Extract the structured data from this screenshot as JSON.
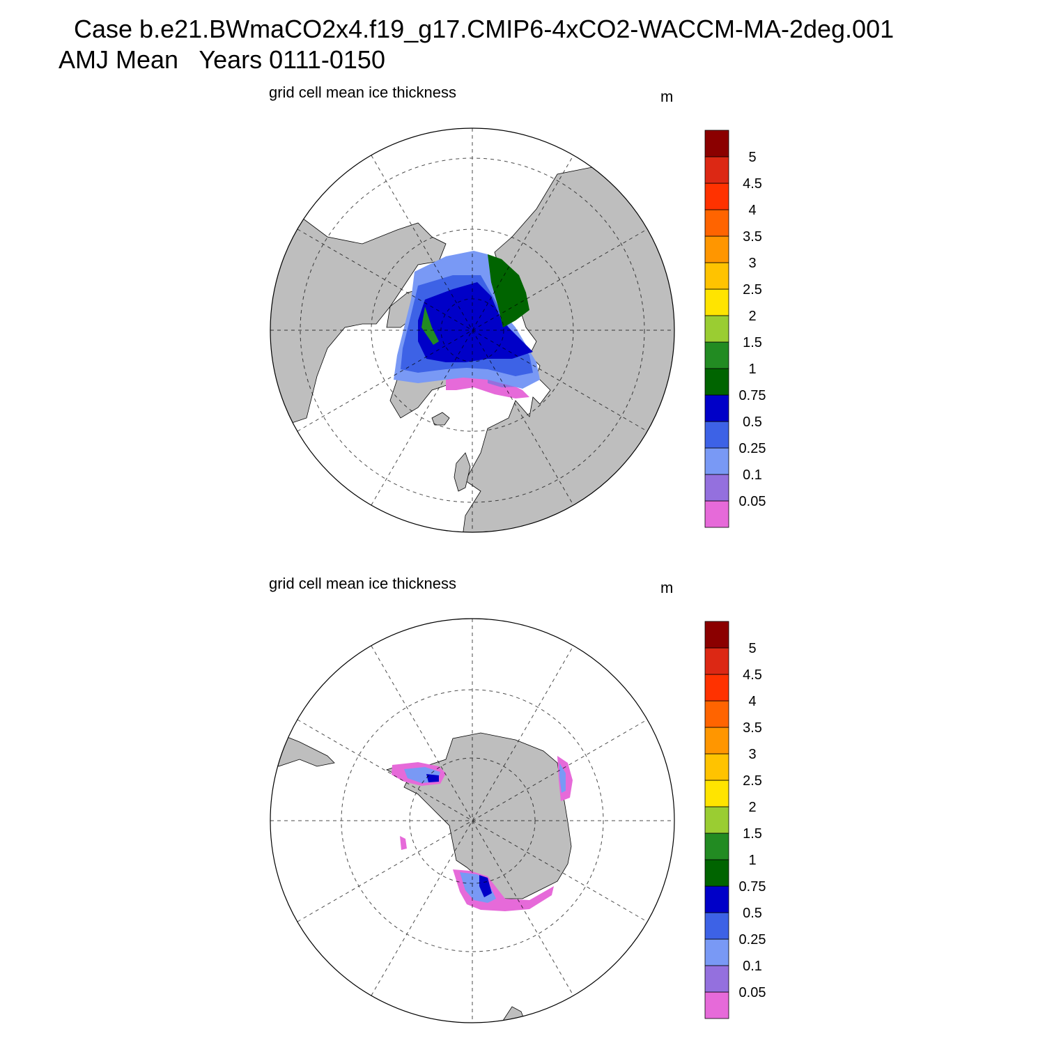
{
  "title": {
    "line1": "Case b.e21.BWmaCO2x4.f19_g17.CMIP6-4xCO2-WACCM-MA-2deg.001",
    "line2": "AMJ Mean   Years 0111-0150"
  },
  "panels": [
    {
      "id": "north",
      "label": "grid cell mean ice thickness",
      "units": "m",
      "hemisphere": "Northern Hemisphere"
    },
    {
      "id": "south",
      "label": "grid cell mean ice thickness",
      "units": "m",
      "hemisphere": "Southern Hemisphere"
    }
  ],
  "colorbar": {
    "labels": [
      "0.05",
      "0.1",
      "0.25",
      "0.5",
      "0.75",
      "1",
      "1.5",
      "2",
      "2.5",
      "3",
      "3.5",
      "4",
      "4.5",
      "5"
    ],
    "colors": [
      "#e66ad9",
      "#9470de",
      "#7999f5",
      "#3d62e6",
      "#0000c8",
      "#006400",
      "#228b22",
      "#9acd32",
      "#ffe400",
      "#ffc300",
      "#ff9600",
      "#ff6400",
      "#ff3200",
      "#dc2814",
      "#8b0000"
    ]
  },
  "colors": {
    "land": "#bebebe",
    "ocean": "#ffffff"
  }
}
